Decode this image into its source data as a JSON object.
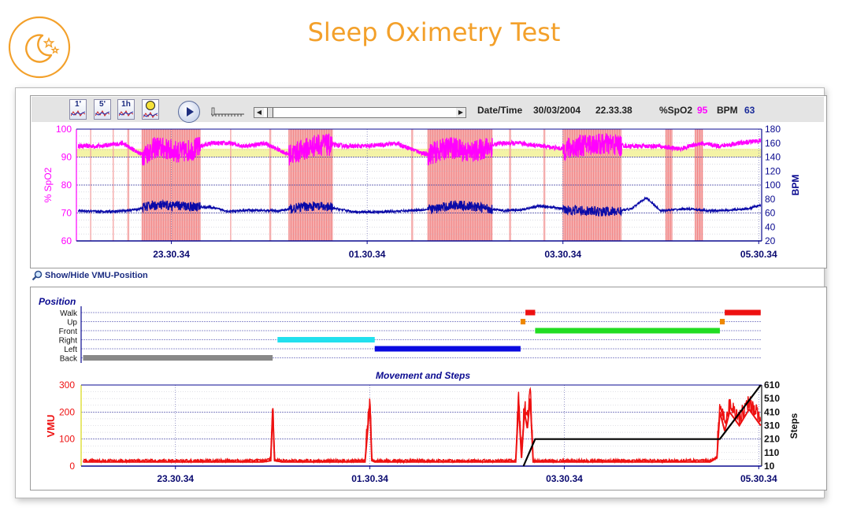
{
  "page": {
    "title": "Sleep Oximetry Test"
  },
  "toolbar": {
    "buttons": [
      "1'",
      "5'",
      "1h"
    ],
    "datetime_label": "Date/Time",
    "date": "30/03/2004",
    "time": "22.33.38",
    "spo2_label": "%SpO2",
    "spo2_value": "95",
    "bpm_label": "BPM",
    "bpm_value": "63"
  },
  "vmu_toggle_label": "Show/Hide VMU-Position",
  "colors": {
    "spo2": "#ff00ff",
    "bpm": "#0a0aa8",
    "desat_band": "#f5a0a0",
    "normal_band": "#f4f3a6",
    "vmu": "#ee1111",
    "steps": "#000000",
    "title": "#f3a02a"
  },
  "chart_data": [
    {
      "type": "line",
      "name": "oximetry",
      "x_ticks": [
        "23.30.34",
        "01.30.34",
        "03.30.34",
        "05.30.34"
      ],
      "ylabel": "% SpO2",
      "y_ticks": [
        100,
        90,
        80,
        70,
        60
      ],
      "ylim": [
        60,
        100
      ],
      "y2label": "BPM",
      "y2_ticks": [
        180,
        160,
        140,
        120,
        100,
        80,
        60,
        40,
        20
      ],
      "y2lim": [
        20,
        180
      ],
      "x_range_hours": [
        22.53,
        29.53
      ],
      "grid": true,
      "series": [
        {
          "name": "%SpO2",
          "x": [
            22.55,
            22.75,
            23.0,
            23.2,
            23.35,
            23.6,
            23.9,
            24.1,
            24.25,
            24.45,
            24.7,
            25.0,
            25.3,
            25.5,
            25.8,
            26.1,
            26.35,
            26.55,
            26.85,
            27.05,
            27.3,
            27.5,
            27.75,
            28.0,
            28.15,
            28.45,
            28.7,
            28.9,
            29.1,
            29.3,
            29.52
          ],
          "values": [
            94,
            94,
            95,
            91,
            94,
            92,
            95,
            95,
            94,
            95,
            91,
            95,
            94,
            94,
            95,
            91,
            94,
            92,
            95,
            95,
            94,
            93,
            95,
            95,
            94,
            94,
            93,
            95,
            94,
            95,
            96
          ]
        },
        {
          "name": "BPM",
          "x": [
            22.55,
            22.75,
            23.0,
            23.15,
            23.3,
            23.6,
            23.9,
            24.1,
            24.3,
            24.6,
            24.9,
            25.1,
            25.4,
            25.7,
            25.9,
            26.2,
            26.4,
            26.65,
            26.9,
            27.1,
            27.25,
            27.4,
            27.6,
            27.85,
            28.05,
            28.2,
            28.35,
            28.5,
            28.75,
            29.0,
            29.2,
            29.4,
            29.52
          ],
          "values": [
            63,
            62,
            63,
            65,
            71,
            70,
            68,
            62,
            64,
            63,
            70,
            68,
            61,
            62,
            63,
            66,
            72,
            68,
            63,
            65,
            70,
            68,
            64,
            62,
            62,
            66,
            82,
            63,
            66,
            63,
            64,
            66,
            72
          ]
        }
      ],
      "desaturation_periods": [
        [
          22.67,
          22.68
        ],
        [
          22.9,
          22.91
        ],
        [
          23.05,
          23.07
        ],
        [
          23.2,
          23.8
        ],
        [
          24.1,
          24.11
        ],
        [
          24.5,
          24.52
        ],
        [
          24.7,
          25.15
        ],
        [
          25.95,
          25.97
        ],
        [
          26.12,
          26.78
        ],
        [
          26.95,
          26.97
        ],
        [
          27.3,
          27.32
        ],
        [
          27.5,
          28.1
        ],
        [
          28.55,
          28.62
        ],
        [
          28.85,
          28.93
        ]
      ],
      "normal_band": [
        90,
        93
      ]
    },
    {
      "type": "line",
      "name": "position",
      "title": "Position",
      "categories": [
        "Walk",
        "Up",
        "Front",
        "Right",
        "Left",
        "Back"
      ],
      "segments": [
        {
          "category": "Back",
          "start": 22.55,
          "end": 24.5,
          "color": "#888888"
        },
        {
          "category": "Right",
          "start": 24.55,
          "end": 25.55,
          "color": "#22e0ee"
        },
        {
          "category": "Left",
          "start": 25.55,
          "end": 27.05,
          "color": "#0a0ae0"
        },
        {
          "category": "Up",
          "start": 27.05,
          "end": 27.1,
          "color": "#ee8800"
        },
        {
          "category": "Walk",
          "start": 27.1,
          "end": 27.2,
          "color": "#ee1111"
        },
        {
          "category": "Front",
          "start": 27.2,
          "end": 29.1,
          "color": "#22dd22"
        },
        {
          "category": "Up",
          "start": 29.1,
          "end": 29.15,
          "color": "#ee8800"
        },
        {
          "category": "Walk",
          "start": 29.15,
          "end": 29.52,
          "color": "#ee1111"
        }
      ]
    },
    {
      "type": "line",
      "name": "movement",
      "title": "Movement and Steps",
      "x_ticks": [
        "23.30.34",
        "01.30.34",
        "03.30.34",
        "05.30.34"
      ],
      "ylabel": "VMU",
      "y_ticks": [
        300,
        200,
        100,
        0
      ],
      "ylim": [
        0,
        300
      ],
      "y2label": "Steps",
      "y2_ticks": [
        610,
        510,
        410,
        310,
        210,
        110,
        10
      ],
      "y2lim": [
        10,
        610
      ],
      "series": [
        {
          "name": "VMU",
          "x": [
            22.55,
            24.4,
            24.48,
            24.5,
            24.52,
            24.6,
            25.45,
            25.5,
            25.52,
            25.55,
            25.6,
            27.0,
            27.03,
            27.06,
            27.09,
            27.12,
            27.15,
            27.18,
            27.22,
            27.3,
            29.0,
            29.07,
            29.1,
            29.15,
            29.2,
            29.3,
            29.4,
            29.52
          ],
          "values": [
            15,
            15,
            20,
            210,
            20,
            15,
            15,
            230,
            20,
            15,
            15,
            15,
            230,
            30,
            200,
            140,
            250,
            15,
            15,
            15,
            15,
            30,
            200,
            130,
            200,
            150,
            210,
            150
          ]
        },
        {
          "name": "Steps",
          "x": [
            27.08,
            27.2,
            27.3,
            29.0,
            29.1,
            29.52
          ],
          "values": [
            10,
            210,
            210,
            210,
            210,
            610
          ]
        }
      ]
    }
  ]
}
